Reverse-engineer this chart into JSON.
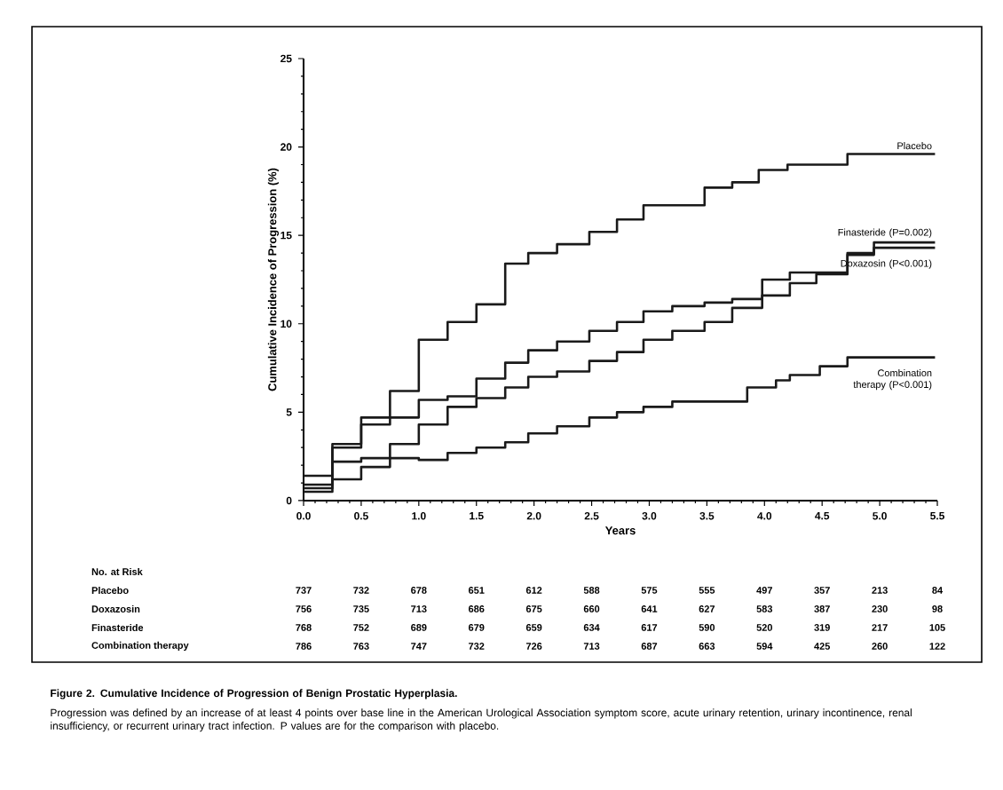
{
  "chart_data": {
    "type": "step",
    "xlabel": "Years",
    "ylabel": "Cumulative Incidence of Progression (%)",
    "xlim": [
      0,
      5.5
    ],
    "ylim": [
      0,
      25
    ],
    "xticks": [
      {
        "value": 0,
        "label": "0.0"
      },
      {
        "value": 0.5,
        "label": "0.5"
      },
      {
        "value": 1,
        "label": "1.0"
      },
      {
        "value": 1.5,
        "label": "1.5"
      },
      {
        "value": 2,
        "label": "2.0"
      },
      {
        "value": 2.5,
        "label": "2.5"
      },
      {
        "value": 3,
        "label": "3.0"
      },
      {
        "value": 3.5,
        "label": "3.5"
      },
      {
        "value": 4,
        "label": "4.0"
      },
      {
        "value": 4.5,
        "label": "4.5"
      },
      {
        "value": 5,
        "label": "5.0"
      },
      {
        "value": 5.5,
        "label": "5.5"
      }
    ],
    "yticks": [
      0,
      5,
      10,
      15,
      20,
      25
    ],
    "grid": false,
    "legend": false,
    "marker": "none",
    "line_style": "solid",
    "series": [
      {
        "name": "Placebo",
        "color": "#1a1a1a",
        "x": [
          0,
          0.25,
          0.5,
          0.75,
          1.0,
          1.25,
          1.5,
          1.75,
          1.95,
          2.2,
          2.48,
          2.72,
          2.95,
          3.48,
          3.72,
          3.95,
          4.2,
          4.72,
          5.48
        ],
        "values": [
          1.4,
          3.2,
          4.7,
          6.2,
          9.1,
          10.1,
          11.1,
          13.4,
          14.0,
          14.5,
          15.2,
          15.9,
          16.7,
          17.7,
          18.0,
          18.7,
          19.0,
          19.6,
          19.6
        ]
      },
      {
        "name": "Doxazosin (P<0.001)",
        "color": "#1a1a1a",
        "x": [
          0,
          0.25,
          0.5,
          0.75,
          1.0,
          1.25,
          1.5,
          1.75,
          1.95,
          2.2,
          2.48,
          2.72,
          2.95,
          3.2,
          3.48,
          3.72,
          3.98,
          4.22,
          4.45,
          4.72,
          4.95,
          5.48
        ],
        "values": [
          0.7,
          2.2,
          2.4,
          3.2,
          4.3,
          5.3,
          5.8,
          6.4,
          7.0,
          7.3,
          7.9,
          8.4,
          9.1,
          9.6,
          10.1,
          10.9,
          11.6,
          12.3,
          12.8,
          13.9,
          14.3,
          14.3
        ]
      },
      {
        "name": "Finasteride (P=0.002)",
        "color": "#1a1a1a",
        "x": [
          0,
          0.25,
          0.5,
          0.75,
          1.0,
          1.25,
          1.5,
          1.75,
          1.95,
          2.2,
          2.48,
          2.72,
          2.95,
          3.2,
          3.48,
          3.72,
          3.98,
          4.22,
          4.72,
          4.95,
          5.48
        ],
        "values": [
          0.9,
          3.0,
          4.3,
          4.7,
          5.7,
          5.9,
          6.9,
          7.8,
          8.5,
          9.0,
          9.6,
          10.1,
          10.7,
          11.0,
          11.2,
          11.4,
          12.5,
          12.9,
          14.0,
          14.6,
          14.6
        ]
      },
      {
        "name": "Combination therapy (P<0.001)",
        "color": "#1a1a1a",
        "x": [
          0,
          0.25,
          0.5,
          0.75,
          1.0,
          1.25,
          1.5,
          1.75,
          1.95,
          2.2,
          2.48,
          2.72,
          2.95,
          3.2,
          3.85,
          4.1,
          4.22,
          4.48,
          4.72,
          5.48
        ],
        "values": [
          0.5,
          1.2,
          1.9,
          2.4,
          2.3,
          2.7,
          3.0,
          3.3,
          3.8,
          4.2,
          4.7,
          5.0,
          5.3,
          5.6,
          6.4,
          6.8,
          7.1,
          7.6,
          8.1,
          8.1
        ]
      }
    ],
    "annotations": [
      "No. at Risk",
      "Placebo",
      "Doxazosin",
      "Finasteride",
      "Combination therapy",
      "737",
      "732",
      "678",
      "651",
      "612",
      "588",
      "575",
      "555",
      "497",
      "357",
      "213",
      "84",
      "756",
      "735",
      "713",
      "686",
      "675",
      "660",
      "641",
      "627",
      "583",
      "387",
      "230",
      "98",
      "768",
      "752",
      "689",
      "679",
      "659",
      "634",
      "617",
      "590",
      "520",
      "319",
      "217",
      "105",
      "786",
      "763",
      "747",
      "732",
      "726",
      "713",
      "687",
      "663",
      "594",
      "425",
      "260",
      "122",
      "Figure 2. Cumulative Incidence of Progression of Benign Prostatic Hyperplasia.",
      "Progression was defined by an increase of at least 4 points over base line in the American Urological Association symptom score, acute urinary retention, urinary incontinence, renal insufficiency, or recurrent urinary tract infection. P values are for the comparison with placebo."
    ]
  }
}
